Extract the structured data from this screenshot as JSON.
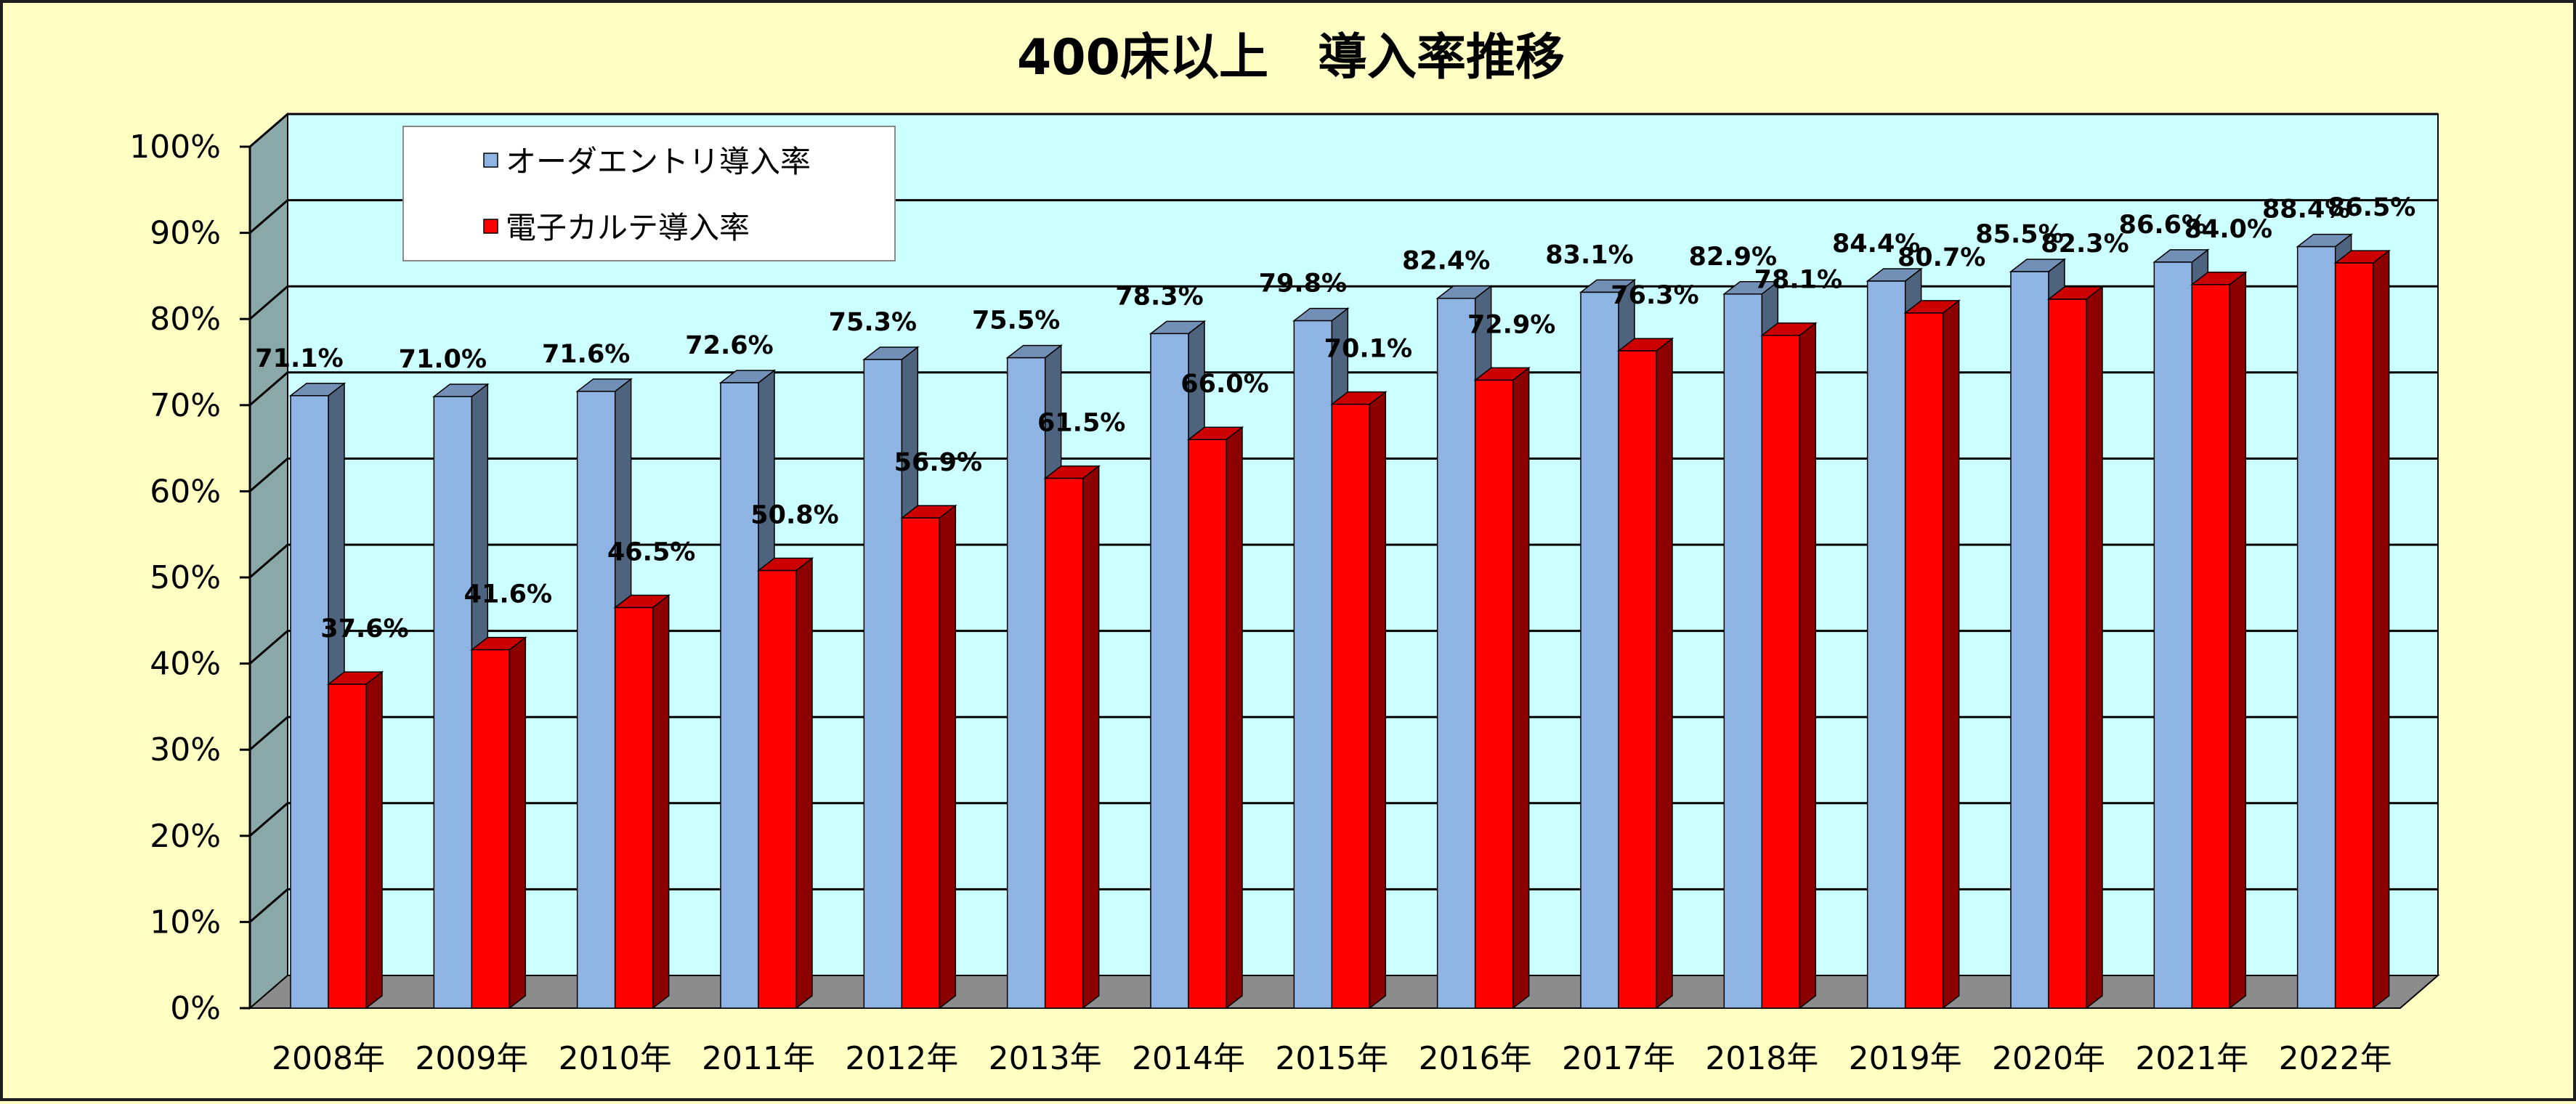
{
  "chart_data": {
    "type": "bar",
    "title": "400床以上　導入率推移",
    "categories": [
      "2008年",
      "2009年",
      "2010年",
      "2011年",
      "2012年",
      "2013年",
      "2014年",
      "2015年",
      "2016年",
      "2017年",
      "2018年",
      "2019年",
      "2020年",
      "2021年",
      "2022年"
    ],
    "series": [
      {
        "name": "オーダエントリ導入率",
        "color": "#8eb4e3",
        "values": [
          71.1,
          71.0,
          71.6,
          72.6,
          75.3,
          75.5,
          78.3,
          79.8,
          82.4,
          83.1,
          82.9,
          84.4,
          85.5,
          86.6,
          88.4
        ],
        "labels": [
          "71.1%",
          "71.0%",
          "71.6%",
          "72.6%",
          "75.3%",
          "75.5%",
          "78.3%",
          "79.8%",
          "82.4%",
          "83.1%",
          "82.9%",
          "84.4%",
          "85.5%",
          "86.6%",
          "88.4%"
        ]
      },
      {
        "name": "電子カルテ導入率",
        "color": "#ff0000",
        "values": [
          37.6,
          41.6,
          46.5,
          50.8,
          56.9,
          61.5,
          66.0,
          70.1,
          72.9,
          76.3,
          78.1,
          80.7,
          82.3,
          84.0,
          86.5
        ],
        "labels": [
          "37.6%",
          "41.6%",
          "46.5%",
          "50.8%",
          "56.9%",
          "61.5%",
          "66.0%",
          "70.1%",
          "72.9%",
          "76.3%",
          "78.1%",
          "80.7%",
          "82.3%",
          "84.0%",
          "86.5%"
        ]
      }
    ],
    "ylim": [
      0,
      100
    ],
    "yticks": [
      "0%",
      "10%",
      "20%",
      "30%",
      "40%",
      "50%",
      "60%",
      "70%",
      "80%",
      "90%",
      "100%"
    ],
    "grid": true,
    "legend_position": "top-left",
    "colors": {
      "background": "#ffffc4",
      "plot_back_wall": "#ccffff",
      "plot_side_wall": "#8aa8a8",
      "plot_floor": "#8c8c8c"
    }
  }
}
